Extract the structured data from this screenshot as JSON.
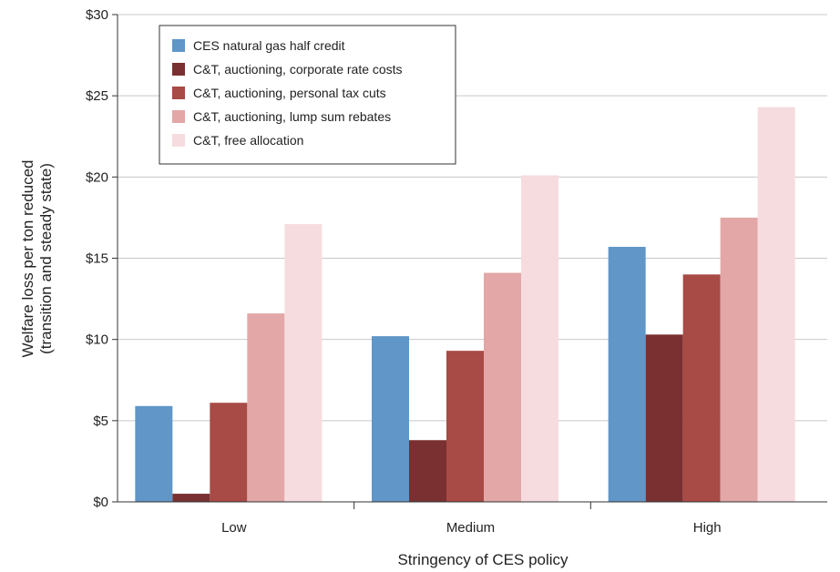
{
  "chart_data": {
    "type": "bar",
    "categories": [
      "Low",
      "Medium",
      "High"
    ],
    "series": [
      {
        "name": "CES natural gas half credit",
        "color": "#6096c8",
        "values": [
          5.9,
          10.2,
          15.7
        ]
      },
      {
        "name": "C&T, auctioning, corporate rate costs",
        "color": "#7a3030",
        "values": [
          0.5,
          3.8,
          10.3
        ]
      },
      {
        "name": "C&T, auctioning, personal tax cuts",
        "color": "#a84a45",
        "values": [
          6.1,
          9.3,
          14.0
        ]
      },
      {
        "name": "C&T, auctioning, lump sum rebates",
        "color": "#e3a7a7",
        "values": [
          11.6,
          14.1,
          17.5
        ]
      },
      {
        "name": "C&T, free allocation",
        "color": "#f6dcde",
        "values": [
          17.1,
          20.1,
          24.3
        ]
      }
    ],
    "xlabel": "Stringency of CES policy",
    "ylabel": [
      "Welfare loss per ton reduced",
      "(transition and steady state)"
    ],
    "ylim": [
      0,
      30
    ],
    "yticks": [
      0,
      5,
      10,
      15,
      20,
      25,
      30
    ],
    "ytick_labels": [
      "$0",
      "$5",
      "$10",
      "$15",
      "$20",
      "$25",
      "$30"
    ],
    "grid": true,
    "legend_position": "top-left"
  }
}
